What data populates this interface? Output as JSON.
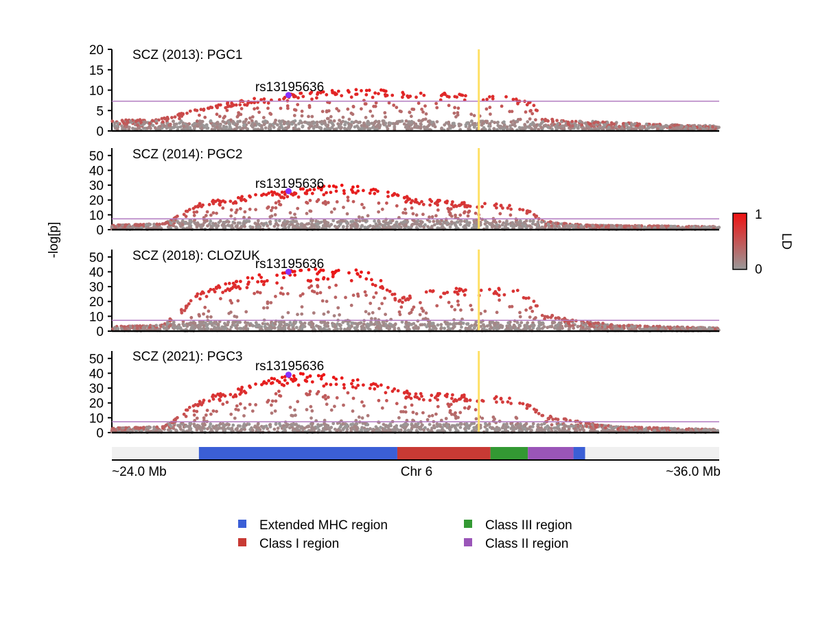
{
  "chart_data": {
    "type": "scatter",
    "y_axis_label": "-log[p]",
    "significance_line": 7.3,
    "highlight_position_mb": 31.25,
    "lead_snp": {
      "name": "rs13195636",
      "position_mb": 27.49
    },
    "panels": [
      {
        "title": "SCZ (2013): PGC1",
        "ylim": [
          0,
          20
        ],
        "ticks": [
          0,
          5,
          10,
          15,
          20
        ],
        "lead_value": 8.8,
        "peak": 12,
        "profile": [
          [
            24.0,
            2.5
          ],
          [
            25.0,
            3
          ],
          [
            25.6,
            5
          ],
          [
            26.0,
            6
          ],
          [
            26.5,
            7.5
          ],
          [
            27.0,
            8
          ],
          [
            27.5,
            8.8
          ],
          [
            28.0,
            9.5
          ],
          [
            28.5,
            10
          ],
          [
            29.0,
            10
          ],
          [
            30.0,
            9.5
          ],
          [
            31.0,
            9
          ],
          [
            31.6,
            8.5
          ],
          [
            32.0,
            8
          ],
          [
            32.3,
            7
          ],
          [
            32.5,
            3
          ],
          [
            33.0,
            2.5
          ],
          [
            36.0,
            1
          ]
        ]
      },
      {
        "title": "SCZ (2014): PGC2",
        "ylim": [
          0,
          55
        ],
        "ticks": [
          0,
          10,
          20,
          30,
          40,
          50
        ],
        "lead_value": 26,
        "peak": 30,
        "profile": [
          [
            24.0,
            3
          ],
          [
            25.0,
            4
          ],
          [
            25.3,
            9
          ],
          [
            25.7,
            18
          ],
          [
            26.5,
            22
          ],
          [
            27.0,
            25
          ],
          [
            27.5,
            26
          ],
          [
            28.0,
            28
          ],
          [
            28.5,
            30
          ],
          [
            29.0,
            28
          ],
          [
            29.5,
            25
          ],
          [
            30.0,
            21
          ],
          [
            31.0,
            18
          ],
          [
            31.6,
            17
          ],
          [
            32.0,
            16
          ],
          [
            32.3,
            12
          ],
          [
            32.5,
            6
          ],
          [
            33.0,
            4
          ],
          [
            33.5,
            3
          ],
          [
            36.0,
            2
          ]
        ]
      },
      {
        "title": "SCZ (2018): CLOZUK",
        "ylim": [
          0,
          55
        ],
        "ticks": [
          0,
          10,
          20,
          30,
          40,
          50
        ],
        "lead_value": 40,
        "peak": 43,
        "profile": [
          [
            24.0,
            3
          ],
          [
            25.0,
            4
          ],
          [
            25.3,
            12
          ],
          [
            25.7,
            25
          ],
          [
            26.3,
            33
          ],
          [
            27.0,
            38
          ],
          [
            27.5,
            40
          ],
          [
            28.0,
            41
          ],
          [
            28.5,
            42
          ],
          [
            29.0,
            40
          ],
          [
            29.3,
            36
          ],
          [
            29.7,
            22
          ],
          [
            30.0,
            27
          ],
          [
            30.5,
            28
          ],
          [
            31.0,
            29
          ],
          [
            31.5,
            29
          ],
          [
            32.0,
            28
          ],
          [
            32.3,
            22
          ],
          [
            32.5,
            12
          ],
          [
            33.0,
            8
          ],
          [
            33.5,
            6
          ],
          [
            34.0,
            4
          ],
          [
            36.0,
            2
          ]
        ]
      },
      {
        "title": "SCZ (2021): PGC3",
        "ylim": [
          0,
          55
        ],
        "ticks": [
          0,
          10,
          20,
          30,
          40,
          50
        ],
        "lead_value": 39,
        "peak": 40,
        "profile": [
          [
            24.0,
            3
          ],
          [
            25.0,
            4
          ],
          [
            25.3,
            10
          ],
          [
            25.6,
            20
          ],
          [
            26.0,
            25
          ],
          [
            26.5,
            30
          ],
          [
            27.0,
            35
          ],
          [
            27.5,
            39
          ],
          [
            28.0,
            39
          ],
          [
            28.5,
            37
          ],
          [
            29.0,
            34
          ],
          [
            29.5,
            30
          ],
          [
            30.0,
            27
          ],
          [
            30.5,
            26
          ],
          [
            31.0,
            25
          ],
          [
            31.5,
            24
          ],
          [
            32.0,
            23
          ],
          [
            32.3,
            18
          ],
          [
            32.5,
            12
          ],
          [
            33.0,
            9
          ],
          [
            33.5,
            6
          ],
          [
            34.0,
            4
          ],
          [
            36.0,
            2
          ]
        ]
      }
    ],
    "x_axis": {
      "start_label": "~24.0 Mb",
      "mid_label": "Chr 6",
      "end_label": "~36.0 Mb",
      "range_mb": [
        24.0,
        36.0
      ]
    },
    "regions": [
      {
        "name": "Extended MHC region",
        "start_mb": 25.72,
        "end_mb": 29.64,
        "color": "#3b5fd6"
      },
      {
        "name": "Class I region",
        "start_mb": 29.64,
        "end_mb": 31.48,
        "color": "#c83a34"
      },
      {
        "name": "Class III region",
        "start_mb": 31.48,
        "end_mb": 32.22,
        "color": "#339933"
      },
      {
        "name": "Class II region",
        "start_mb": 32.22,
        "end_mb": 33.12,
        "color": "#9a55b8"
      },
      {
        "name": "Extended MHC region",
        "start_mb": 33.12,
        "end_mb": 33.35,
        "color": "#3b5fd6"
      }
    ],
    "colorbar": {
      "label": "LD",
      "min_label": "0",
      "max_label": "1",
      "low_color": "#999999",
      "high_color": "#ee1111"
    },
    "legend": [
      {
        "label": "Extended MHC region",
        "color": "#3b5fd6"
      },
      {
        "label": "Class III region",
        "color": "#339933"
      },
      {
        "label": "Class I region",
        "color": "#c83a34"
      },
      {
        "label": "Class II region",
        "color": "#9a55b8"
      }
    ],
    "colors": {
      "threshold_line": "#b07ac0",
      "highlight_line": "#ffe066",
      "lead_snp": "#8833ff",
      "backbone": "#f0f0f0"
    }
  }
}
